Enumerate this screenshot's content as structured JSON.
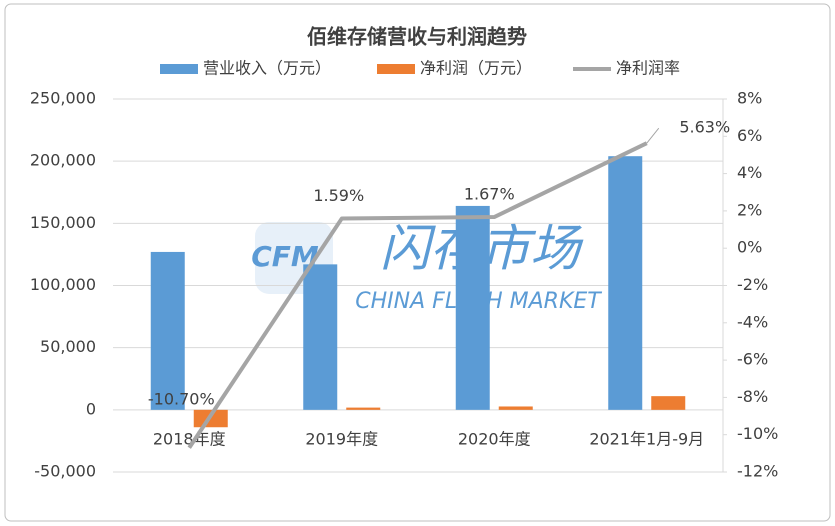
{
  "chart_data": {
    "type": "bar_line",
    "title": "佰维存储营收与利润趋势",
    "categories": [
      "2018年度",
      "2019年度",
      "2020年度",
      "2021年1月-9月"
    ],
    "series": [
      {
        "name": "营业收入（万元）",
        "color": "#5b9bd5",
        "type": "bar",
        "values": [
          127000,
          117000,
          164000,
          204000
        ]
      },
      {
        "name": "净利润（万元）",
        "color": "#ed7d31",
        "type": "bar",
        "values": [
          -14000,
          1800,
          2700,
          11000
        ]
      },
      {
        "name": "净利润率",
        "color": "#a5a5a5",
        "type": "line",
        "axis": "y2",
        "values": [
          -10.7,
          1.59,
          1.67,
          5.63
        ],
        "value_labels": [
          "-10.70%",
          "1.59%",
          "1.67%",
          "5.63%"
        ]
      }
    ],
    "ylim": [
      -50000,
      250000
    ],
    "yticks": [
      {
        "value": -50000,
        "label": "-50,000"
      },
      0,
      {
        "value": 50000,
        "label": "50,000"
      },
      {
        "value": 100000,
        "label": "100,000"
      },
      {
        "value": 150000,
        "label": "150,000"
      },
      {
        "value": 200000,
        "label": "200,000"
      },
      {
        "value": 250000,
        "label": "250,000"
      }
    ],
    "y2lim": [
      -12,
      8
    ],
    "y2ticks": [
      {
        "value": -12,
        "label": "-12%"
      },
      {
        "value": -10,
        "label": "-10%"
      },
      {
        "value": -8,
        "label": "-8%"
      },
      {
        "value": -6,
        "label": "-6%"
      },
      {
        "value": -4,
        "label": "-4%"
      },
      {
        "value": -2,
        "label": "-2%"
      },
      {
        "value": 0,
        "label": "0%"
      },
      {
        "value": 2,
        "label": "2%"
      },
      {
        "value": 4,
        "label": "4%"
      },
      {
        "value": 6,
        "label": "6%"
      },
      {
        "value": 8,
        "label": "8%"
      }
    ],
    "grid": true,
    "legend": "top",
    "watermark": [
      "CFM",
      "闪存市场",
      "CHINA FLASH MARKET"
    ]
  }
}
